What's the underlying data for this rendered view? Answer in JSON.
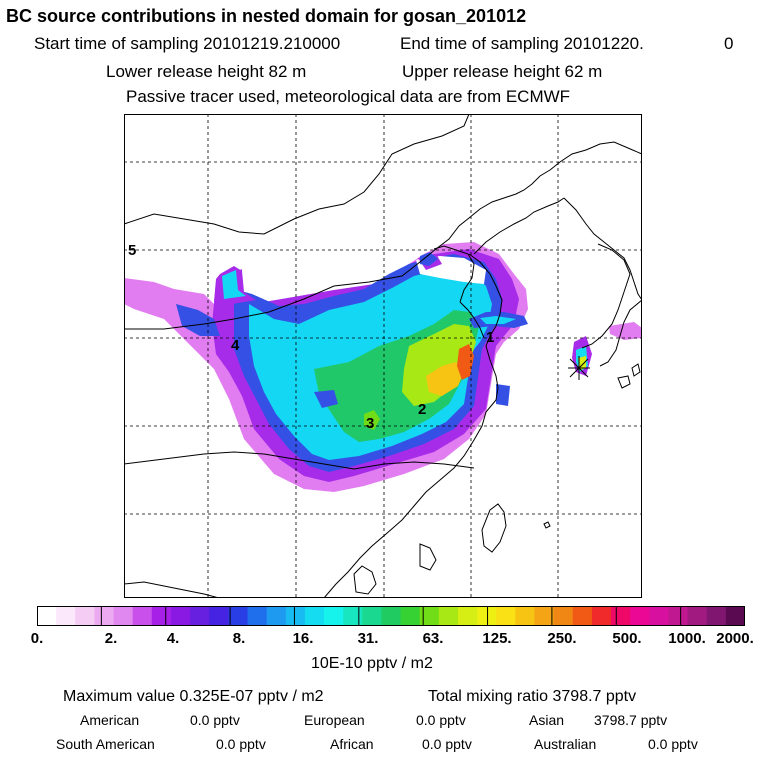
{
  "title": "BC  source contributions in nested domain for gosan_201012",
  "sampling": {
    "start": "Start time of sampling 20101219.210000",
    "end": "End time of sampling 20101220.",
    "end_suffix": "0"
  },
  "release": {
    "lower": "Lower release height   82 m",
    "upper": "Upper release height   62 m"
  },
  "note": "Passive tracer used, meteorological data are from ECMWF",
  "map": {
    "labels": [
      "5",
      "4",
      "3",
      "2",
      "1"
    ],
    "colors": {
      "land_border": "#000000",
      "grid": "#000000"
    }
  },
  "colorbar": {
    "colors": [
      "#ffffff",
      "#fbe8fb",
      "#f4ccf4",
      "#ecaaf0",
      "#e088ef",
      "#c950ea",
      "#a720e8",
      "#8a19e3",
      "#6820e0",
      "#4622e2",
      "#2a3ee6",
      "#1f6eec",
      "#1e9af0",
      "#18bcf2",
      "#16dcf2",
      "#16f2ec",
      "#18e6c0",
      "#1ad890",
      "#20cc62",
      "#36d234",
      "#70dd18",
      "#a8e814",
      "#d6ee14",
      "#eef014",
      "#fae116",
      "#f8c414",
      "#f4a414",
      "#f08614",
      "#f05a14",
      "#f02a2a",
      "#f00868",
      "#ea0894",
      "#d810a0",
      "#c01890",
      "#a01a80",
      "#801670",
      "#5a0a50"
    ],
    "ticks": [
      "0.",
      "2.",
      "4.",
      "8.",
      "16.",
      "31.",
      "63.",
      "125.",
      "250.",
      "500.",
      "1000.",
      "2000."
    ],
    "units": "10E-10 pptv / m2"
  },
  "summary": {
    "max_value": "Maximum value  0.325E-07 pptv / m2",
    "total": "Total mixing ratio     3798.7 pptv",
    "regions": [
      {
        "name": "American",
        "value": "0.0 pptv"
      },
      {
        "name": "European",
        "value": "0.0 pptv"
      },
      {
        "name": "Asian",
        "value": "3798.7 pptv"
      },
      {
        "name": "South American",
        "value": "0.0 pptv"
      },
      {
        "name": "African",
        "value": "0.0 pptv"
      },
      {
        "name": "Australian",
        "value": "0.0 pptv"
      }
    ]
  }
}
